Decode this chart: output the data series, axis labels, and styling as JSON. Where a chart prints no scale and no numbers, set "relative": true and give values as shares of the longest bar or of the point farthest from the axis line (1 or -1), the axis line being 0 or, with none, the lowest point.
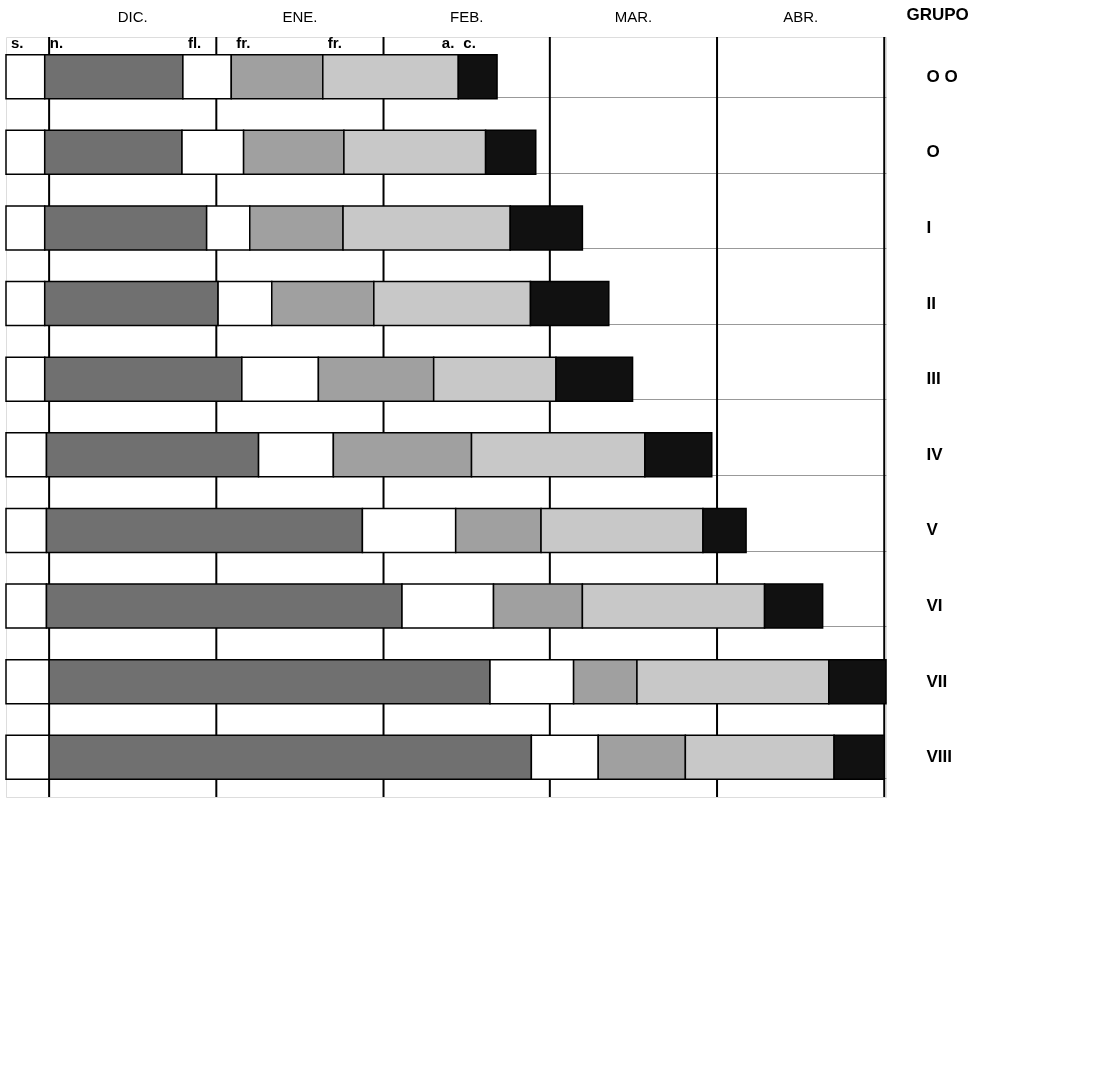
{
  "chart_data": {
    "type": "bar",
    "orientation": "horizontal",
    "stacked": true,
    "relative": true,
    "ylabel": "GRUPO",
    "categories": [
      "O O",
      "O",
      "I",
      "II",
      "III",
      "IV",
      "V",
      "VI",
      "VII",
      "VIII"
    ],
    "series": [
      {
        "color": "#ffffff",
        "values": [
          0.044,
          0.044,
          0.044,
          0.044,
          0.044,
          0.046,
          0.046,
          0.046,
          0.049,
          0.049
        ]
      },
      {
        "color": "#707070",
        "values": [
          0.157,
          0.156,
          0.184,
          0.197,
          0.224,
          0.241,
          0.359,
          0.404,
          0.501,
          0.548
        ]
      },
      {
        "color": "#ffffff",
        "values": [
          0.055,
          0.07,
          0.049,
          0.061,
          0.087,
          0.085,
          0.106,
          0.104,
          0.095,
          0.076
        ]
      },
      {
        "color": "#a0a0a0",
        "values": [
          0.104,
          0.114,
          0.106,
          0.116,
          0.131,
          0.157,
          0.097,
          0.101,
          0.072,
          0.099
        ]
      },
      {
        "color": "#c8c8c8",
        "values": [
          0.154,
          0.161,
          0.19,
          0.178,
          0.139,
          0.197,
          0.184,
          0.207,
          0.218,
          0.169
        ]
      },
      {
        "color": "#111111",
        "values": [
          0.044,
          0.057,
          0.082,
          0.089,
          0.087,
          0.076,
          0.049,
          0.066,
          0.065,
          0.057
        ]
      }
    ],
    "ref_lines": [
      {
        "axis": "x",
        "value": 0.049
      },
      {
        "axis": "x",
        "value": 0.239
      },
      {
        "axis": "x",
        "value": 0.429
      },
      {
        "axis": "x",
        "value": 0.618
      },
      {
        "axis": "x",
        "value": 0.808
      },
      {
        "axis": "x",
        "value": 0.998
      }
    ],
    "annotations": [
      "DIC.",
      "ENE.",
      "FEB.",
      "MAR.",
      "ABR.",
      "s.",
      "n.",
      "fl.",
      "fr.",
      "fr.",
      "a.",
      "c."
    ],
    "grid": "y",
    "legend": false
  }
}
